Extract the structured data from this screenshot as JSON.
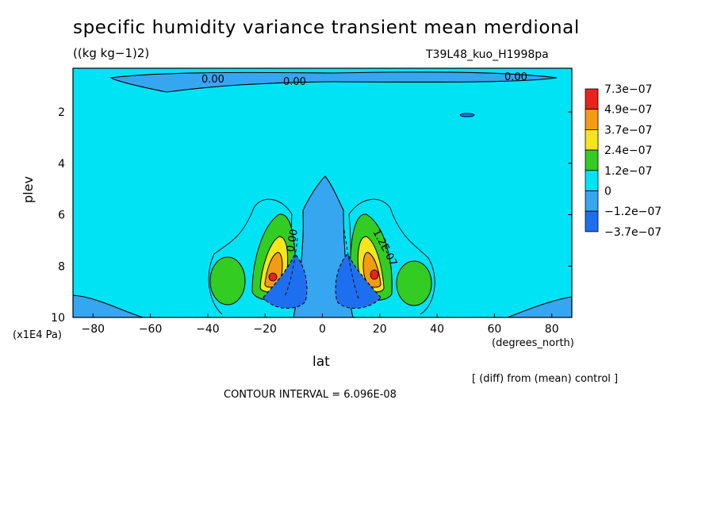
{
  "chart_data": {
    "type": "contour",
    "title": "specific humidity variance transient mean merdional",
    "units": "((kg kg−1)2)",
    "run_label": "T39L48_kuo_H1998pa",
    "xlabel": "lat",
    "x_units": "(degrees_north)",
    "ylabel": "plev",
    "y_units": "(x1E4 Pa)",
    "xlim": [
      -87,
      87
    ],
    "ylim": [
      10,
      0.3
    ],
    "x_ticks": [
      -80,
      -60,
      -40,
      -20,
      0,
      20,
      40,
      60,
      80
    ],
    "x_tick_labels": [
      "−80",
      "−60",
      "−40",
      "−20",
      "0",
      "20",
      "40",
      "60",
      "80"
    ],
    "y_ticks": [
      2,
      4,
      6,
      8,
      10
    ],
    "y_tick_labels": [
      "2",
      "4",
      "6",
      "8",
      "10"
    ],
    "colorbar": {
      "labels": [
        "7.3e−07",
        "4.9e−07",
        "3.7e−07",
        "2.4e−07",
        "1.2e−07",
        "0",
        "−1.2e−07",
        "−3.7e−07"
      ],
      "colors": [
        "#e8231c",
        "#f39c12",
        "#f5e51b",
        "#33cc22",
        "#00e3f5",
        "#36a6f0",
        "#1e6ff0"
      ]
    },
    "contour_labels": [
      "0.00",
      "0.00",
      "0.00",
      "0.00",
      "1.2E-07"
    ],
    "footer_note": "[ (diff) from (mean) control ]",
    "contour_interval": "CONTOUR INTERVAL = 6.096E-08"
  }
}
